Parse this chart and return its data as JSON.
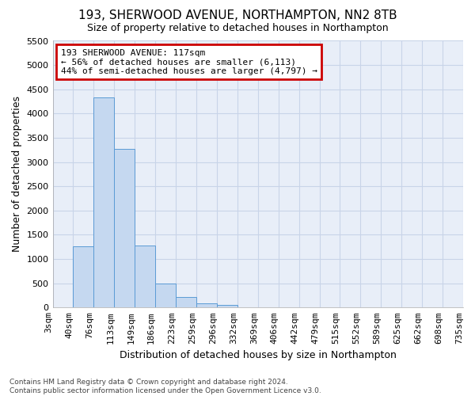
{
  "title": "193, SHERWOOD AVENUE, NORTHAMPTON, NN2 8TB",
  "subtitle": "Size of property relative to detached houses in Northampton",
  "xlabel": "Distribution of detached houses by size in Northampton",
  "ylabel": "Number of detached properties",
  "bins": [
    "3sqm",
    "40sqm",
    "76sqm",
    "113sqm",
    "149sqm",
    "186sqm",
    "223sqm",
    "259sqm",
    "296sqm",
    "332sqm",
    "369sqm",
    "406sqm",
    "442sqm",
    "479sqm",
    "515sqm",
    "552sqm",
    "589sqm",
    "625sqm",
    "662sqm",
    "698sqm",
    "735sqm"
  ],
  "values": [
    0,
    1270,
    4330,
    3270,
    1280,
    490,
    220,
    85,
    55,
    0,
    0,
    0,
    0,
    0,
    0,
    0,
    0,
    0,
    0,
    0
  ],
  "bar_color": "#c5d8f0",
  "bar_edge_color": "#5b9bd5",
  "annotation_text": "193 SHERWOOD AVENUE: 117sqm\n← 56% of detached houses are smaller (6,113)\n44% of semi-detached houses are larger (4,797) →",
  "annotation_box_color": "#cc0000",
  "ylim": [
    0,
    5500
  ],
  "yticks": [
    0,
    500,
    1000,
    1500,
    2000,
    2500,
    3000,
    3500,
    4000,
    4500,
    5000,
    5500
  ],
  "plot_bg_color": "#e8eef8",
  "fig_bg_color": "#ffffff",
  "grid_color": "#c8d4e8",
  "footer_line1": "Contains HM Land Registry data © Crown copyright and database right 2024.",
  "footer_line2": "Contains public sector information licensed under the Open Government Licence v3.0.",
  "title_fontsize": 11,
  "subtitle_fontsize": 9
}
